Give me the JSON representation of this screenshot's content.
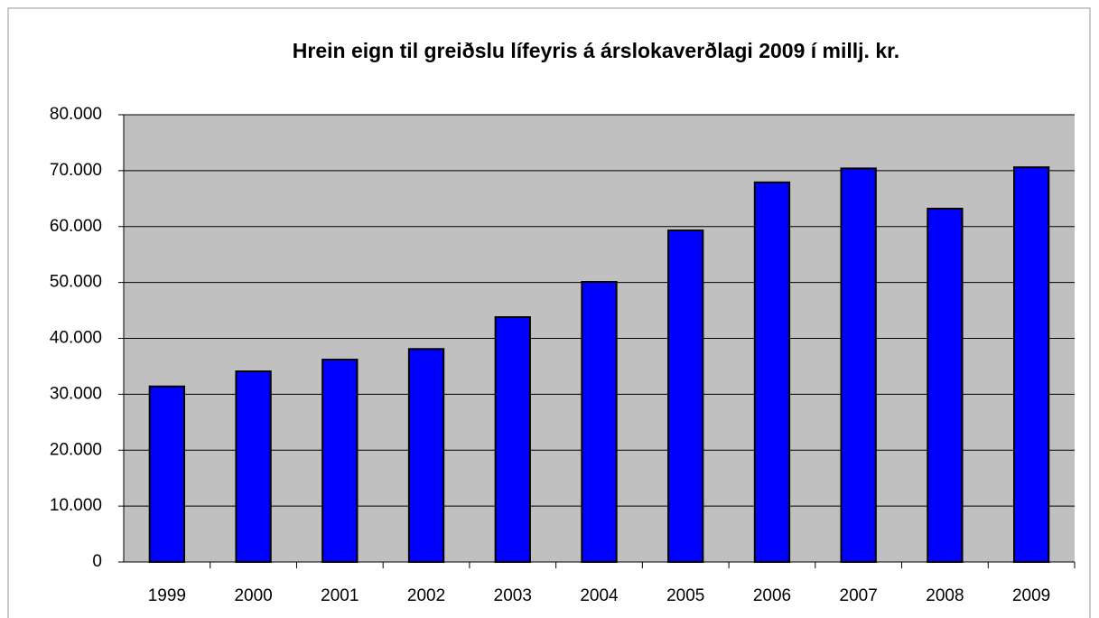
{
  "chart_data": {
    "type": "bar",
    "title": "Hrein eign til greiðslu lífeyris á árslokaverðlagi 2009 í millj. kr.",
    "categories": [
      "1999",
      "2000",
      "2001",
      "2002",
      "2003",
      "2004",
      "2005",
      "2006",
      "2007",
      "2008",
      "2009"
    ],
    "values": [
      31400,
      34100,
      36200,
      38100,
      43800,
      50100,
      59300,
      67900,
      70400,
      63200,
      70600
    ],
    "color": "#0000ff",
    "ylim": [
      0,
      80000
    ],
    "yticks": [
      0,
      {
        "value": 10000,
        "label": "10.000"
      },
      {
        "value": 20000,
        "label": "20.000"
      },
      {
        "value": 30000,
        "label": "30.000"
      },
      {
        "value": 40000,
        "label": "40.000"
      },
      {
        "value": 50000,
        "label": "50.000"
      },
      {
        "value": 60000,
        "label": "60.000"
      },
      {
        "value": 70000,
        "label": "70.000"
      },
      {
        "value": 80000,
        "label": "80.000"
      }
    ],
    "grid": true
  }
}
